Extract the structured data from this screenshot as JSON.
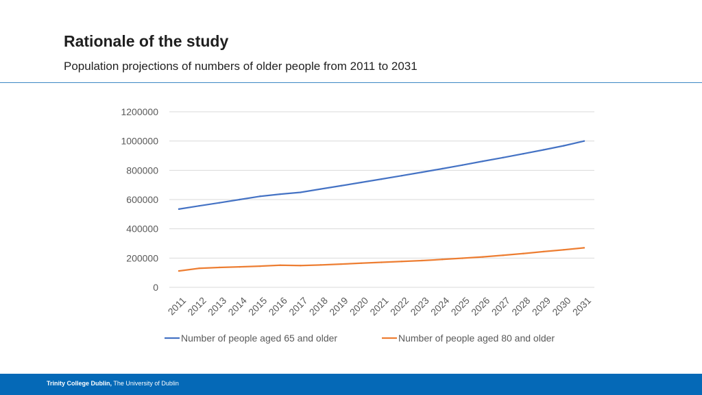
{
  "slide": {
    "title": "Rationale of the study",
    "subtitle": "Population projections of numbers of older people from 2011 to 2031"
  },
  "footer": {
    "institution": "Trinity College Dublin,",
    "university": "The University of Dublin",
    "bar_color": "#0569b7"
  },
  "chart_data": {
    "type": "line",
    "title": "",
    "xlabel": "",
    "ylabel": "",
    "ylim": [
      0,
      1200000
    ],
    "yticks": [
      "0",
      "200000",
      "400000",
      "600000",
      "800000",
      "1000000",
      "1200000"
    ],
    "categories": [
      "2011",
      "2012",
      "2013",
      "2014",
      "2015",
      "2016",
      "2017",
      "2018",
      "2019",
      "2020",
      "2021",
      "2022",
      "2023",
      "2024",
      "2025",
      "2026",
      "2027",
      "2028",
      "2029",
      "2030",
      "2031"
    ],
    "series": [
      {
        "name": "Number of people aged 65 and older",
        "color": "#4472c4",
        "values": [
          535000,
          557000,
          578000,
          600000,
          622000,
          637000,
          649000,
          672000,
          694000,
          717000,
          740000,
          763000,
          787000,
          811000,
          836000,
          862000,
          887000,
          913000,
          940000,
          968000,
          1000000
        ]
      },
      {
        "name": "Number of people aged 80 and older",
        "color": "#ed7d31",
        "values": [
          112000,
          130000,
          136000,
          140000,
          145000,
          151000,
          149000,
          153000,
          159000,
          165000,
          171000,
          177000,
          183000,
          191000,
          199000,
          208000,
          219000,
          231000,
          244000,
          257000,
          270000
        ]
      }
    ],
    "legend_position": "bottom",
    "grid": true
  }
}
